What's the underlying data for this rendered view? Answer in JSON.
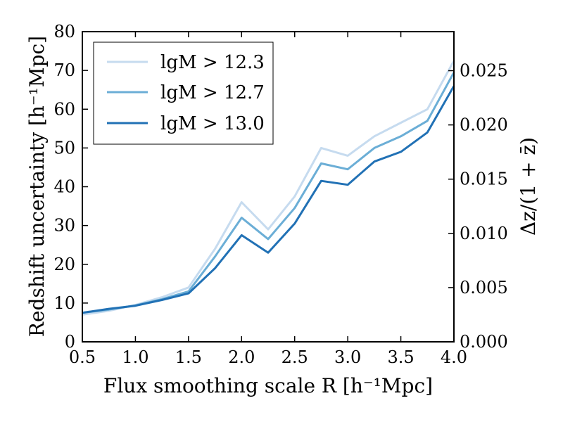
{
  "chart_data": {
    "type": "line",
    "x": [
      0.5,
      0.75,
      1.0,
      1.25,
      1.5,
      1.75,
      2.0,
      2.25,
      2.5,
      2.75,
      3.0,
      3.25,
      3.5,
      3.75,
      4.0
    ],
    "series": [
      {
        "name": "lgM > 12.3",
        "color": "#c6dbef",
        "values": [
          7.0,
          8.0,
          9.5,
          11.5,
          14.0,
          24.0,
          36.0,
          29.0,
          37.5,
          50.0,
          48.0,
          53.0,
          56.5,
          60.0,
          72.5
        ]
      },
      {
        "name": "lgM > 12.7",
        "color": "#6baed6",
        "values": [
          7.5,
          8.3,
          9.4,
          11.0,
          13.0,
          22.0,
          32.0,
          26.5,
          34.5,
          46.0,
          44.5,
          50.0,
          53.0,
          57.0,
          69.5
        ]
      },
      {
        "name": "lgM > 13.0",
        "color": "#2171b5",
        "values": [
          7.5,
          8.5,
          9.3,
          10.8,
          12.5,
          19.0,
          27.5,
          23.0,
          30.5,
          41.5,
          40.5,
          46.5,
          49.0,
          54.0,
          66.0
        ]
      }
    ],
    "title": "",
    "xlabel": "Flux smoothing scale R [h⁻¹Mpc]",
    "ylabel": "Redshift uncertainty [h⁻¹Mpc]",
    "ylabel_right": "Δz/(1 + z̄)",
    "xlim": [
      0.5,
      4.0
    ],
    "ylim": [
      0,
      80
    ],
    "ylim_right": [
      0,
      0.0286
    ],
    "xticks": [
      0.5,
      1.0,
      1.5,
      2.0,
      2.5,
      3.0,
      3.5,
      4.0
    ],
    "xtick_labels": [
      "0.5",
      "1.0",
      "1.5",
      "2.0",
      "2.5",
      "3.0",
      "3.5",
      "4.0"
    ],
    "yticks": [
      0,
      10,
      20,
      30,
      40,
      50,
      60,
      70,
      80
    ],
    "ytick_labels": [
      "0",
      "10",
      "20",
      "30",
      "40",
      "50",
      "60",
      "70",
      "80"
    ],
    "yticks_right": [
      0,
      0.005,
      0.01,
      0.015,
      0.02,
      0.025
    ],
    "ytick_labels_right": [
      "0.000",
      "0.005",
      "0.010",
      "0.015",
      "0.020",
      "0.025"
    ],
    "legend_position": "top-left",
    "grid": false
  }
}
